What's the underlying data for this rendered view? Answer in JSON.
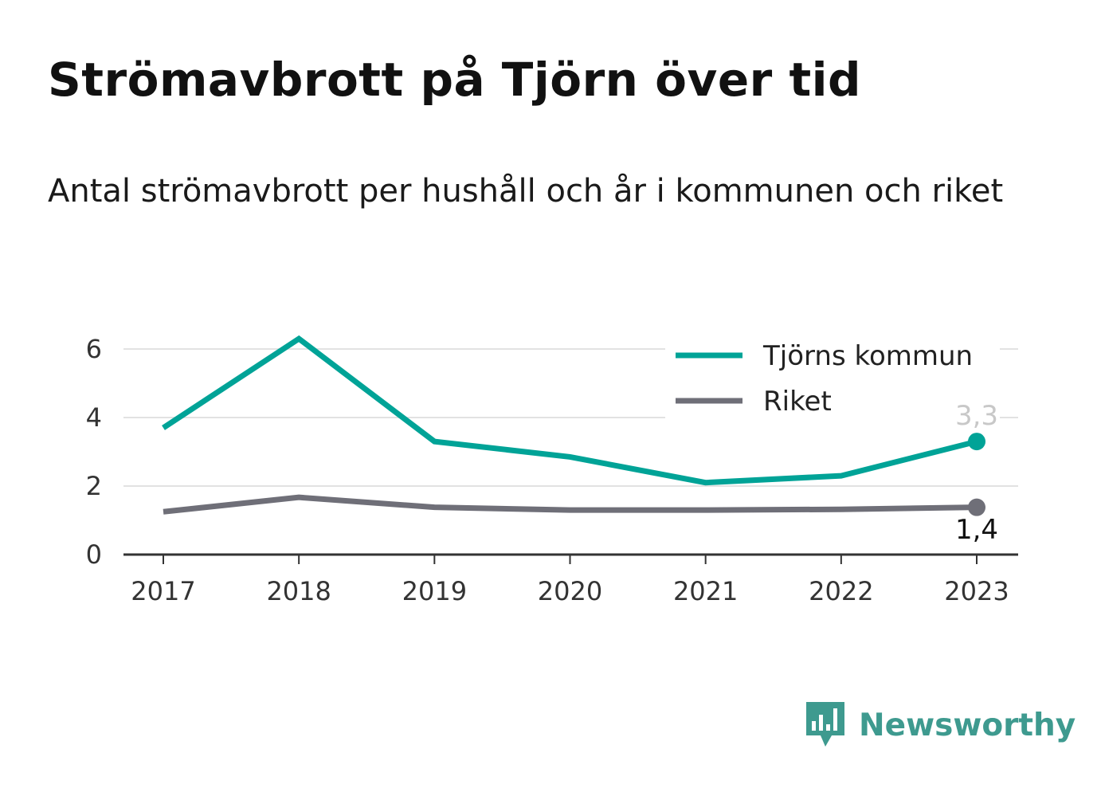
{
  "title": "Strömavbrott på Tjörn över tid",
  "subtitle": "Antal strömavbrott per hushåll och år i kommunen och riket",
  "logo": {
    "text": "Newsworthy",
    "icon": "bar-chart-speech-bubble-icon",
    "color": "#3e9a8f"
  },
  "chart_data": {
    "type": "line",
    "title": "Strömavbrott på Tjörn över tid",
    "subtitle": "Antal strömavbrott per hushåll och år i kommunen och riket",
    "xlabel": "",
    "ylabel": "",
    "x": [
      "2017",
      "2018",
      "2019",
      "2020",
      "2021",
      "2022",
      "2023"
    ],
    "ylim": [
      0,
      6.5
    ],
    "yticks": [
      0,
      2,
      4,
      6
    ],
    "grid": true,
    "legend_position": "top-right",
    "series": [
      {
        "name": "Tjörns kommun",
        "color": "#00a397",
        "values": [
          3.7,
          6.3,
          3.3,
          2.85,
          2.1,
          2.3,
          3.3
        ],
        "end_label": "3,3",
        "end_label_color": "#c8c8c8"
      },
      {
        "name": "Riket",
        "color": "#6f6f78",
        "values": [
          1.25,
          1.67,
          1.38,
          1.3,
          1.3,
          1.32,
          1.38
        ],
        "end_label": "1,4",
        "end_label_color": "#111111"
      }
    ]
  }
}
